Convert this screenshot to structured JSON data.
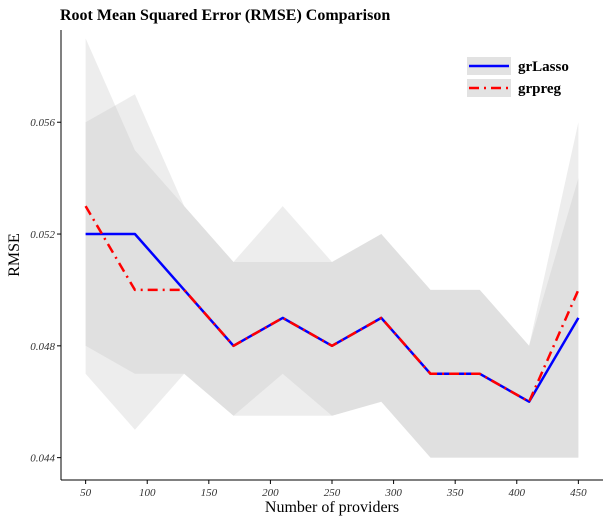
{
  "chart_data": {
    "type": "line",
    "title": "Root Mean Squared Error (RMSE) Comparison",
    "xlabel": "Number of providers",
    "ylabel": "RMSE",
    "x": [
      50,
      90,
      130,
      170,
      210,
      250,
      290,
      330,
      370,
      410,
      450
    ],
    "xlim": [
      30,
      470
    ],
    "ylim": [
      0.0432,
      0.0593
    ],
    "xticks": [
      50,
      100,
      150,
      200,
      250,
      300,
      350,
      400,
      450
    ],
    "yticks": [
      0.044,
      0.048,
      0.052,
      0.056
    ],
    "ytick_labels": [
      "0.044",
      "0.048",
      "0.052",
      "0.056"
    ],
    "grid": false,
    "legend_position": "top-right",
    "series": [
      {
        "name": "grLasso",
        "color": "#0000ff",
        "line_style": "solid",
        "values": [
          0.052,
          0.052,
          0.05,
          0.048,
          0.049,
          0.048,
          0.049,
          0.047,
          0.047,
          0.046,
          0.049
        ],
        "ribbon_lower": [
          0.048,
          0.047,
          0.047,
          0.0455,
          0.0455,
          0.0455,
          0.046,
          0.044,
          0.044,
          0.044,
          0.044
        ],
        "ribbon_upper": [
          0.056,
          0.057,
          0.053,
          0.051,
          0.051,
          0.051,
          0.052,
          0.05,
          0.05,
          0.048,
          0.054
        ]
      },
      {
        "name": "grpreg",
        "color": "#ff0000",
        "line_style": "dashdot",
        "values": [
          0.053,
          0.05,
          0.05,
          0.048,
          0.049,
          0.048,
          0.049,
          0.047,
          0.047,
          0.046,
          0.05
        ],
        "ribbon_lower": [
          0.047,
          0.045,
          0.047,
          0.0455,
          0.047,
          0.0455,
          0.046,
          0.044,
          0.044,
          0.044,
          0.044
        ],
        "ribbon_upper": [
          0.059,
          0.055,
          0.053,
          0.051,
          0.053,
          0.051,
          0.052,
          0.05,
          0.05,
          0.048,
          0.056
        ]
      }
    ]
  }
}
